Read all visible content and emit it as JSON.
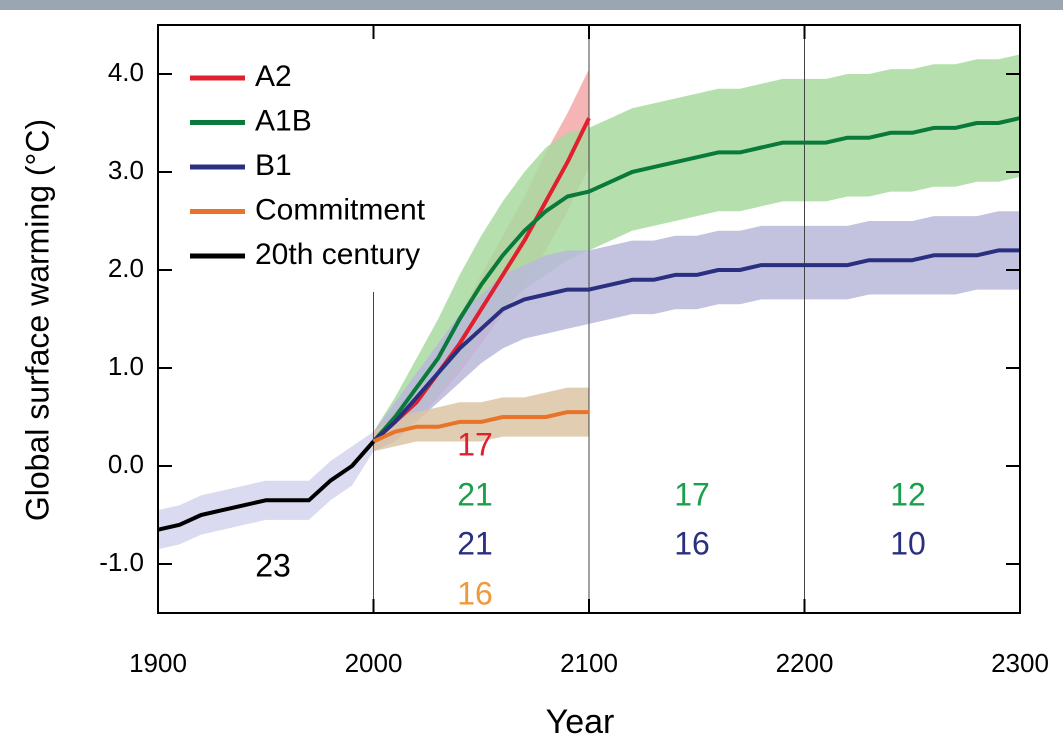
{
  "chart_data": {
    "type": "line",
    "x_label": "Year",
    "y_label": "Global surface warming (°C)",
    "xlim": [
      1900,
      2300
    ],
    "ylim": [
      -1.5,
      4.5
    ],
    "xticks": [
      1900,
      2000,
      2100,
      2200,
      2300
    ],
    "yticks": [
      {
        "value": 4,
        "label": "4.0"
      },
      {
        "value": 3,
        "label": "3.0"
      },
      {
        "value": 2,
        "label": "2.0"
      },
      {
        "value": 1,
        "label": "1.0"
      },
      {
        "value": 0,
        "label": "0.0"
      },
      {
        "value": -1,
        "label": "-1.0"
      }
    ],
    "dividers": [
      2000,
      2100,
      2200
    ],
    "x": [
      1900,
      1910,
      1920,
      1930,
      1940,
      1950,
      1960,
      1970,
      1980,
      1990,
      2000,
      2010,
      2020,
      2030,
      2040,
      2050,
      2060,
      2070,
      2080,
      2090,
      2100,
      2110,
      2120,
      2130,
      2140,
      2150,
      2160,
      2170,
      2180,
      2190,
      2200,
      2210,
      2220,
      2230,
      2240,
      2250,
      2260,
      2270,
      2280,
      2290,
      2300
    ],
    "series": [
      {
        "name": "A2",
        "color": "#e0202e",
        "band_color": "#f5a8a8",
        "values": [
          null,
          null,
          null,
          null,
          null,
          null,
          null,
          null,
          null,
          null,
          0.25,
          0.45,
          0.65,
          0.95,
          1.25,
          1.6,
          1.95,
          2.3,
          2.7,
          3.1,
          3.55,
          null,
          null,
          null,
          null,
          null,
          null,
          null,
          null,
          null,
          null,
          null,
          null,
          null,
          null,
          null,
          null,
          null,
          null,
          null,
          null
        ],
        "band_lower": [
          null,
          null,
          null,
          null,
          null,
          null,
          null,
          null,
          null,
          null,
          0.15,
          0.3,
          0.45,
          0.7,
          0.95,
          1.25,
          1.55,
          1.85,
          2.2,
          2.6,
          3.05,
          null,
          null,
          null,
          null,
          null,
          null,
          null,
          null,
          null,
          null,
          null,
          null,
          null,
          null,
          null,
          null,
          null,
          null,
          null,
          null
        ],
        "band_upper": [
          null,
          null,
          null,
          null,
          null,
          null,
          null,
          null,
          null,
          null,
          0.35,
          0.6,
          0.85,
          1.2,
          1.55,
          1.95,
          2.35,
          2.75,
          3.2,
          3.6,
          4.05,
          null,
          null,
          null,
          null,
          null,
          null,
          null,
          null,
          null,
          null,
          null,
          null,
          null,
          null,
          null,
          null,
          null,
          null,
          null,
          null
        ]
      },
      {
        "name": "A1B",
        "color": "#0a7a3a",
        "band_color": "#a8dba0",
        "values": [
          null,
          null,
          null,
          null,
          null,
          null,
          null,
          null,
          null,
          null,
          0.25,
          0.5,
          0.8,
          1.1,
          1.5,
          1.85,
          2.15,
          2.4,
          2.6,
          2.75,
          2.8,
          2.9,
          3.0,
          3.05,
          3.1,
          3.15,
          3.2,
          3.2,
          3.25,
          3.3,
          3.3,
          3.3,
          3.35,
          3.35,
          3.4,
          3.4,
          3.45,
          3.45,
          3.5,
          3.5,
          3.55
        ],
        "band_lower": [
          null,
          null,
          null,
          null,
          null,
          null,
          null,
          null,
          null,
          null,
          0.15,
          0.3,
          0.5,
          0.75,
          1.05,
          1.35,
          1.6,
          1.8,
          1.95,
          2.1,
          2.2,
          2.3,
          2.4,
          2.45,
          2.5,
          2.55,
          2.6,
          2.6,
          2.65,
          2.7,
          2.7,
          2.7,
          2.75,
          2.75,
          2.8,
          2.8,
          2.85,
          2.85,
          2.9,
          2.9,
          2.95
        ],
        "band_upper": [
          null,
          null,
          null,
          null,
          null,
          null,
          null,
          null,
          null,
          null,
          0.35,
          0.7,
          1.1,
          1.5,
          1.95,
          2.35,
          2.7,
          3.0,
          3.25,
          3.4,
          3.45,
          3.55,
          3.65,
          3.7,
          3.75,
          3.8,
          3.85,
          3.85,
          3.9,
          3.95,
          3.95,
          3.95,
          4.0,
          4.0,
          4.05,
          4.05,
          4.1,
          4.1,
          4.15,
          4.15,
          4.2
        ]
      },
      {
        "name": "B1",
        "color": "#2a2f7f",
        "band_color": "#b8b8da",
        "values": [
          null,
          null,
          null,
          null,
          null,
          null,
          null,
          null,
          null,
          null,
          0.25,
          0.45,
          0.7,
          0.95,
          1.2,
          1.4,
          1.6,
          1.7,
          1.75,
          1.8,
          1.8,
          1.85,
          1.9,
          1.9,
          1.95,
          1.95,
          2.0,
          2.0,
          2.05,
          2.05,
          2.05,
          2.05,
          2.05,
          2.1,
          2.1,
          2.1,
          2.15,
          2.15,
          2.15,
          2.2,
          2.2
        ],
        "band_lower": [
          null,
          null,
          null,
          null,
          null,
          null,
          null,
          null,
          null,
          null,
          0.15,
          0.25,
          0.45,
          0.65,
          0.85,
          1.05,
          1.2,
          1.3,
          1.35,
          1.4,
          1.45,
          1.5,
          1.55,
          1.55,
          1.6,
          1.6,
          1.65,
          1.65,
          1.7,
          1.7,
          1.7,
          1.7,
          1.7,
          1.75,
          1.75,
          1.75,
          1.75,
          1.75,
          1.8,
          1.8,
          1.8
        ],
        "band_upper": [
          null,
          null,
          null,
          null,
          null,
          null,
          null,
          null,
          null,
          null,
          0.35,
          0.65,
          0.95,
          1.25,
          1.55,
          1.75,
          1.95,
          2.05,
          2.15,
          2.2,
          2.2,
          2.25,
          2.3,
          2.3,
          2.35,
          2.35,
          2.4,
          2.4,
          2.45,
          2.45,
          2.45,
          2.45,
          2.45,
          2.5,
          2.5,
          2.5,
          2.55,
          2.55,
          2.55,
          2.6,
          2.6
        ]
      },
      {
        "name": "Commitment",
        "color": "#e8742a",
        "band_color": "#dcc4a4",
        "values": [
          null,
          null,
          null,
          null,
          null,
          null,
          null,
          null,
          null,
          null,
          0.25,
          0.35,
          0.4,
          0.4,
          0.45,
          0.45,
          0.5,
          0.5,
          0.5,
          0.55,
          0.55,
          null,
          null,
          null,
          null,
          null,
          null,
          null,
          null,
          null,
          null,
          null,
          null,
          null,
          null,
          null,
          null,
          null,
          null,
          null,
          null
        ],
        "band_lower": [
          null,
          null,
          null,
          null,
          null,
          null,
          null,
          null,
          null,
          null,
          0.15,
          0.2,
          0.25,
          0.25,
          0.25,
          0.25,
          0.3,
          0.3,
          0.3,
          0.3,
          0.3,
          null,
          null,
          null,
          null,
          null,
          null,
          null,
          null,
          null,
          null,
          null,
          null,
          null,
          null,
          null,
          null,
          null,
          null,
          null,
          null
        ],
        "band_upper": [
          null,
          null,
          null,
          null,
          null,
          null,
          null,
          null,
          null,
          null,
          0.35,
          0.5,
          0.55,
          0.6,
          0.65,
          0.65,
          0.7,
          0.7,
          0.75,
          0.8,
          0.8,
          null,
          null,
          null,
          null,
          null,
          null,
          null,
          null,
          null,
          null,
          null,
          null,
          null,
          null,
          null,
          null,
          null,
          null,
          null,
          null
        ]
      },
      {
        "name": "20th century",
        "color": "#000000",
        "band_color": "#d4d4ee",
        "values": [
          -0.65,
          -0.6,
          -0.5,
          -0.45,
          -0.4,
          -0.35,
          -0.35,
          -0.35,
          -0.15,
          0.0,
          0.25,
          null,
          null,
          null,
          null,
          null,
          null,
          null,
          null,
          null,
          null,
          null,
          null,
          null,
          null,
          null,
          null,
          null,
          null,
          null,
          null,
          null,
          null,
          null,
          null,
          null,
          null,
          null,
          null,
          null,
          null
        ],
        "band_lower": [
          -0.85,
          -0.8,
          -0.7,
          -0.65,
          -0.6,
          -0.55,
          -0.55,
          -0.55,
          -0.35,
          -0.2,
          0.15,
          null,
          null,
          null,
          null,
          null,
          null,
          null,
          null,
          null,
          null,
          null,
          null,
          null,
          null,
          null,
          null,
          null,
          null,
          null,
          null,
          null,
          null,
          null,
          null,
          null,
          null,
          null,
          null,
          null,
          null
        ],
        "band_upper": [
          -0.45,
          -0.4,
          -0.3,
          -0.25,
          -0.2,
          -0.15,
          -0.15,
          -0.15,
          0.05,
          0.2,
          0.35,
          null,
          null,
          null,
          null,
          null,
          null,
          null,
          null,
          null,
          null,
          null,
          null,
          null,
          null,
          null,
          null,
          null,
          null,
          null,
          null,
          null,
          null,
          null,
          null,
          null,
          null,
          null,
          null,
          null,
          null
        ]
      }
    ],
    "model_counts": [
      {
        "text": "23",
        "color": "#000000"
      },
      {
        "text": "17",
        "color": "#e0202e"
      },
      {
        "text": "21",
        "color": "#1aa04a"
      },
      {
        "text": "21",
        "color": "#2a2f7f"
      },
      {
        "text": "16",
        "color": "#f0983a"
      },
      {
        "text": "17",
        "color": "#1aa04a"
      },
      {
        "text": "16",
        "color": "#2a2f7f"
      },
      {
        "text": "12",
        "color": "#1aa04a"
      },
      {
        "text": "10",
        "color": "#2a2f7f"
      }
    ]
  }
}
